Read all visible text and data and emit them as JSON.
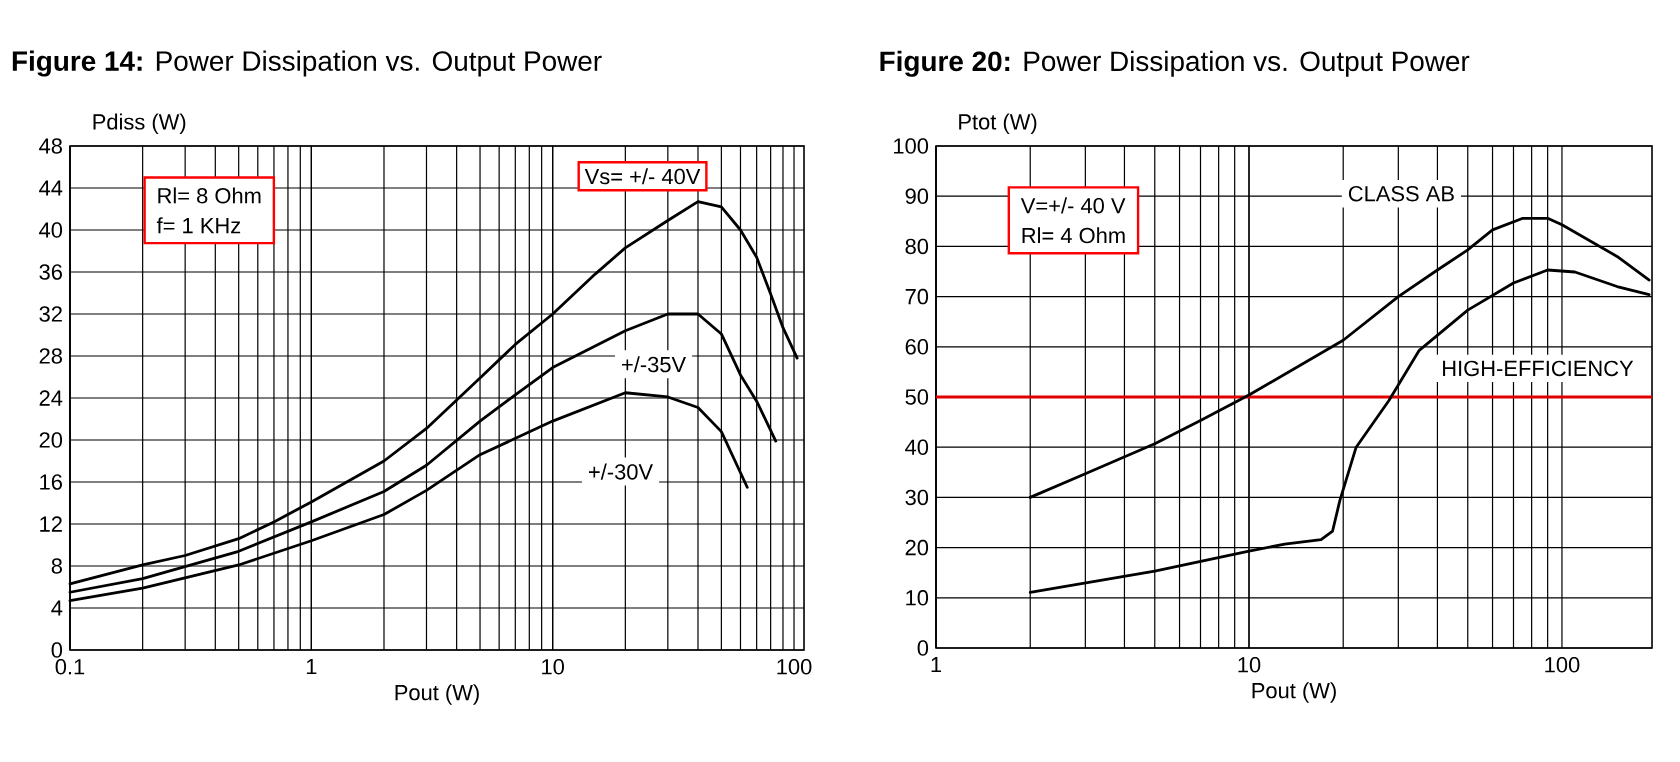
{
  "chart_data": [
    {
      "type": "line",
      "title": "**Figure 14:** Power Dissipation vs. Output Power",
      "xlabel": "Pout (W)",
      "ylabel": "Pdiss (W)",
      "log": "x",
      "grid": true,
      "marker": "none",
      "line_style": "solid",
      "xlim": [
        0.1,
        110
      ],
      "xticks": [
        {
          "value": 0.1,
          "label": "0.1"
        },
        1,
        10,
        100
      ],
      "ylim": [
        0,
        48
      ],
      "yticks": [
        0,
        4,
        8,
        12,
        16,
        20,
        24,
        28,
        32,
        36,
        40,
        44,
        48
      ],
      "annotations": [
        "Rl= 8 Ohm",
        "f= 1 KHz"
      ],
      "series": [
        {
          "name": "Vs= +/- 40V",
          "color": "#000000",
          "x": [
            0.1,
            0.2,
            0.3,
            0.5,
            0.7,
            1,
            2,
            3,
            5,
            7,
            10,
            15,
            20,
            30,
            40,
            50,
            60,
            70,
            80,
            90,
            103
          ],
          "values": [
            6.3,
            8.1,
            9.0,
            10.6,
            12.2,
            14.1,
            18.0,
            21.1,
            25.9,
            29.1,
            32.0,
            35.8,
            38.3,
            40.9,
            42.7,
            42.2,
            40.0,
            37.4,
            33.9,
            30.7,
            27.8
          ]
        },
        {
          "name": "+/-35V",
          "color": "#000000",
          "x": [
            0.1,
            0.2,
            0.5,
            1,
            2,
            3,
            5,
            7,
            10,
            20,
            30,
            40,
            50,
            60,
            70,
            84
          ],
          "values": [
            5.5,
            6.8,
            9.4,
            12.2,
            15.1,
            17.6,
            21.8,
            24.3,
            26.9,
            30.4,
            32.0,
            32.0,
            30.1,
            26.2,
            23.7,
            19.9
          ]
        },
        {
          "name": "+/-30V",
          "color": "#000000",
          "x": [
            0.1,
            0.2,
            0.5,
            1,
            2,
            3,
            5,
            10,
            20,
            30,
            40,
            50,
            64
          ],
          "values": [
            4.7,
            5.9,
            8.1,
            10.4,
            12.9,
            15.2,
            18.6,
            21.8,
            24.5,
            24.1,
            23.1,
            20.8,
            15.5
          ]
        }
      ]
    },
    {
      "type": "line",
      "title": "**Figure 20:** Power Dissipation vs. Output Power",
      "xlabel": "Pout (W)",
      "ylabel": "Ptot (W)",
      "log": "x",
      "grid": true,
      "marker": "none",
      "line_style": "solid",
      "xlim": [
        1,
        194
      ],
      "xticks": [
        1,
        10,
        100
      ],
      "ylim": [
        0,
        100
      ],
      "yticks": [
        0,
        10,
        20,
        30,
        40,
        50,
        60,
        70,
        80,
        90,
        100
      ],
      "annotations": [
        "V=+/- 40 V",
        "Rl= 4 Ohm"
      ],
      "ref_lines": [
        {
          "axis": "y",
          "value": 50,
          "color": "#e00000"
        }
      ],
      "series": [
        {
          "name": "CLASS AB",
          "color": "#000000",
          "x": [
            2,
            3,
            5,
            7,
            10,
            20,
            30,
            40,
            50,
            60,
            75,
            90,
            100,
            150,
            190
          ],
          "values": [
            30,
            34.7,
            40.7,
            45.3,
            50.4,
            61.3,
            70,
            75.3,
            79.3,
            83.3,
            85.6,
            85.6,
            84.3,
            78,
            73.3
          ]
        },
        {
          "name": "HIGH-EFFICIENCY",
          "color": "#000000",
          "x": [
            2,
            5,
            10,
            13,
            17,
            18.5,
            19.5,
            22,
            28,
            35,
            50,
            70,
            90,
            110,
            150,
            190
          ],
          "values": [
            11.1,
            15.3,
            19.3,
            20.7,
            21.6,
            23.3,
            29.3,
            40,
            49.3,
            59.3,
            67.3,
            72.7,
            75.3,
            74.9,
            72,
            70.4
          ]
        }
      ]
    }
  ]
}
